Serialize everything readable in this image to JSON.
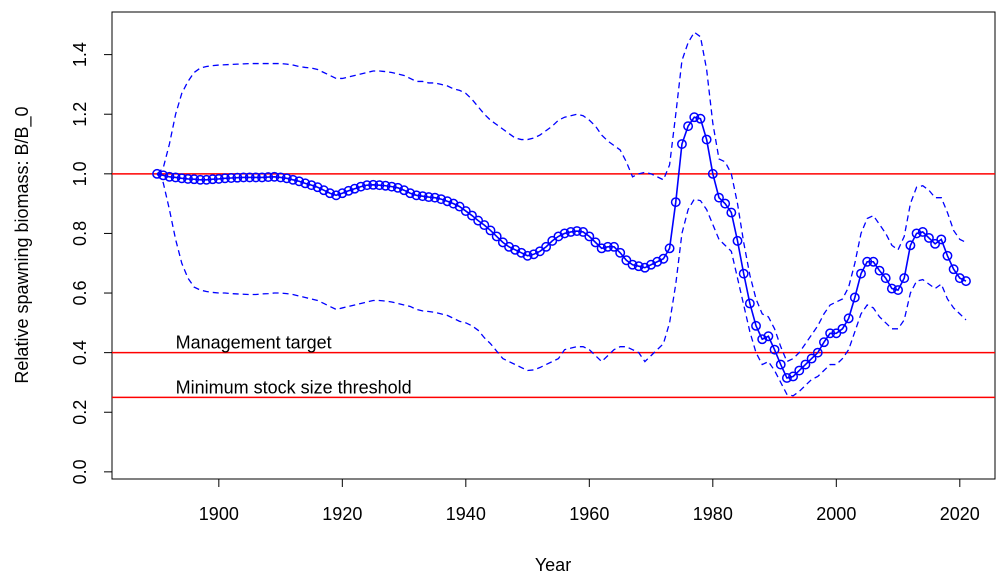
{
  "chart_data": {
    "type": "line",
    "x_label": "Year",
    "y_label": "Relative spawning biomass: B/B_0",
    "x": [
      1890,
      1891,
      1892,
      1893,
      1894,
      1895,
      1896,
      1897,
      1898,
      1899,
      1900,
      1901,
      1902,
      1903,
      1904,
      1905,
      1906,
      1907,
      1908,
      1909,
      1910,
      1911,
      1912,
      1913,
      1914,
      1915,
      1916,
      1917,
      1918,
      1919,
      1920,
      1921,
      1922,
      1923,
      1924,
      1925,
      1926,
      1927,
      1928,
      1929,
      1930,
      1931,
      1932,
      1933,
      1934,
      1935,
      1936,
      1937,
      1938,
      1939,
      1940,
      1941,
      1942,
      1943,
      1944,
      1945,
      1946,
      1947,
      1948,
      1949,
      1950,
      1951,
      1952,
      1953,
      1954,
      1955,
      1956,
      1957,
      1958,
      1959,
      1960,
      1961,
      1962,
      1963,
      1964,
      1965,
      1966,
      1967,
      1968,
      1969,
      1970,
      1971,
      1972,
      1973,
      1974,
      1975,
      1976,
      1977,
      1978,
      1979,
      1980,
      1981,
      1982,
      1983,
      1984,
      1985,
      1986,
      1987,
      1988,
      1989,
      1990,
      1991,
      1992,
      1993,
      1994,
      1995,
      1996,
      1997,
      1998,
      1999,
      2000,
      2001,
      2002,
      2003,
      2004,
      2005,
      2006,
      2007,
      2008,
      2009,
      2010,
      2011,
      2012,
      2013,
      2014,
      2015,
      2016,
      2017,
      2018,
      2019,
      2020,
      2021
    ],
    "series": [
      {
        "color": "#0000ff",
        "linestyle": "solid",
        "marker": "circle",
        "values": [
          1.0,
          0.995,
          0.99,
          0.988,
          0.985,
          0.983,
          0.982,
          0.98,
          0.98,
          0.982,
          0.983,
          0.985,
          0.986,
          0.987,
          0.988,
          0.988,
          0.988,
          0.988,
          0.989,
          0.99,
          0.988,
          0.985,
          0.98,
          0.975,
          0.968,
          0.962,
          0.955,
          0.945,
          0.935,
          0.928,
          0.935,
          0.943,
          0.95,
          0.957,
          0.962,
          0.963,
          0.962,
          0.96,
          0.957,
          0.953,
          0.945,
          0.935,
          0.928,
          0.925,
          0.922,
          0.92,
          0.915,
          0.908,
          0.9,
          0.89,
          0.875,
          0.86,
          0.843,
          0.828,
          0.81,
          0.79,
          0.77,
          0.755,
          0.745,
          0.735,
          0.725,
          0.73,
          0.74,
          0.755,
          0.775,
          0.79,
          0.8,
          0.805,
          0.808,
          0.805,
          0.79,
          0.77,
          0.75,
          0.755,
          0.755,
          0.735,
          0.71,
          0.695,
          0.69,
          0.685,
          0.695,
          0.705,
          0.715,
          0.75,
          0.905,
          1.1,
          1.16,
          1.19,
          1.185,
          1.115,
          1.0,
          0.92,
          0.9,
          0.87,
          0.775,
          0.665,
          0.565,
          0.49,
          0.445,
          0.455,
          0.41,
          0.36,
          0.315,
          0.32,
          0.34,
          0.36,
          0.38,
          0.4,
          0.435,
          0.465,
          0.465,
          0.48,
          0.515,
          0.585,
          0.665,
          0.705,
          0.705,
          0.675,
          0.65,
          0.615,
          0.61,
          0.65,
          0.76,
          0.8,
          0.805,
          0.785,
          0.765,
          0.78,
          0.725,
          0.68,
          0.65,
          0.64
        ]
      },
      {
        "color": "#0000ff",
        "linestyle": "dashed",
        "marker": null,
        "values": [
          1.0,
          1.02,
          1.1,
          1.2,
          1.27,
          1.31,
          1.34,
          1.355,
          1.36,
          1.363,
          1.365,
          1.366,
          1.367,
          1.368,
          1.369,
          1.37,
          1.37,
          1.37,
          1.37,
          1.37,
          1.37,
          1.368,
          1.365,
          1.36,
          1.357,
          1.355,
          1.35,
          1.34,
          1.33,
          1.32,
          1.32,
          1.325,
          1.33,
          1.335,
          1.34,
          1.345,
          1.345,
          1.343,
          1.34,
          1.335,
          1.33,
          1.32,
          1.31,
          1.31,
          1.305,
          1.305,
          1.3,
          1.295,
          1.285,
          1.28,
          1.27,
          1.25,
          1.225,
          1.2,
          1.18,
          1.165,
          1.15,
          1.135,
          1.12,
          1.115,
          1.115,
          1.12,
          1.13,
          1.145,
          1.16,
          1.18,
          1.19,
          1.195,
          1.2,
          1.195,
          1.18,
          1.16,
          1.13,
          1.11,
          1.095,
          1.08,
          1.04,
          0.99,
          1.0,
          1.005,
          1.0,
          0.99,
          0.98,
          1.03,
          1.2,
          1.38,
          1.44,
          1.475,
          1.46,
          1.35,
          1.17,
          1.05,
          1.04,
          1.0,
          0.9,
          0.77,
          0.66,
          0.58,
          0.53,
          0.52,
          0.48,
          0.42,
          0.37,
          0.38,
          0.4,
          0.43,
          0.46,
          0.49,
          0.53,
          0.56,
          0.57,
          0.58,
          0.62,
          0.7,
          0.8,
          0.85,
          0.86,
          0.83,
          0.8,
          0.76,
          0.745,
          0.79,
          0.9,
          0.955,
          0.96,
          0.945,
          0.92,
          0.92,
          0.87,
          0.81,
          0.78,
          0.77
        ]
      },
      {
        "color": "#0000ff",
        "linestyle": "dashed",
        "marker": null,
        "values": [
          1.0,
          0.97,
          0.88,
          0.78,
          0.7,
          0.65,
          0.62,
          0.61,
          0.605,
          0.602,
          0.6,
          0.6,
          0.598,
          0.597,
          0.596,
          0.595,
          0.595,
          0.597,
          0.598,
          0.6,
          0.6,
          0.598,
          0.595,
          0.59,
          0.585,
          0.58,
          0.575,
          0.565,
          0.555,
          0.545,
          0.55,
          0.555,
          0.56,
          0.565,
          0.57,
          0.575,
          0.575,
          0.573,
          0.57,
          0.565,
          0.56,
          0.555,
          0.545,
          0.54,
          0.538,
          0.535,
          0.53,
          0.525,
          0.515,
          0.505,
          0.5,
          0.49,
          0.475,
          0.45,
          0.43,
          0.405,
          0.38,
          0.37,
          0.36,
          0.35,
          0.34,
          0.342,
          0.35,
          0.36,
          0.37,
          0.38,
          0.41,
          0.415,
          0.42,
          0.42,
          0.41,
          0.39,
          0.37,
          0.39,
          0.41,
          0.42,
          0.42,
          0.41,
          0.4,
          0.37,
          0.39,
          0.41,
          0.43,
          0.5,
          0.63,
          0.8,
          0.88,
          0.915,
          0.91,
          0.88,
          0.83,
          0.78,
          0.76,
          0.74,
          0.65,
          0.56,
          0.47,
          0.4,
          0.36,
          0.37,
          0.34,
          0.3,
          0.26,
          0.255,
          0.27,
          0.29,
          0.31,
          0.32,
          0.34,
          0.36,
          0.36,
          0.38,
          0.41,
          0.47,
          0.53,
          0.56,
          0.55,
          0.52,
          0.5,
          0.48,
          0.48,
          0.51,
          0.6,
          0.64,
          0.645,
          0.63,
          0.615,
          0.63,
          0.58,
          0.55,
          0.53,
          0.51
        ]
      }
    ],
    "hlines": [
      {
        "value": 1,
        "color": "#ff0000"
      },
      {
        "value": 0.4,
        "color": "#ff0000",
        "label": "Management target"
      },
      {
        "value": 0.25,
        "color": "#ff0000",
        "label": "Minimum stock size threshold"
      }
    ],
    "xlim": [
      1882.7,
      2025.7
    ],
    "ylim": [
      -0.024,
      1.543
    ],
    "xticks": [
      1900,
      1920,
      1940,
      1960,
      1980,
      2000,
      2020
    ],
    "yticks": [
      {
        "value": 0,
        "label": "0.0"
      },
      0.2,
      0.4,
      0.6,
      0.8,
      {
        "value": 1,
        "label": "1.0"
      },
      1.2,
      1.4
    ]
  }
}
